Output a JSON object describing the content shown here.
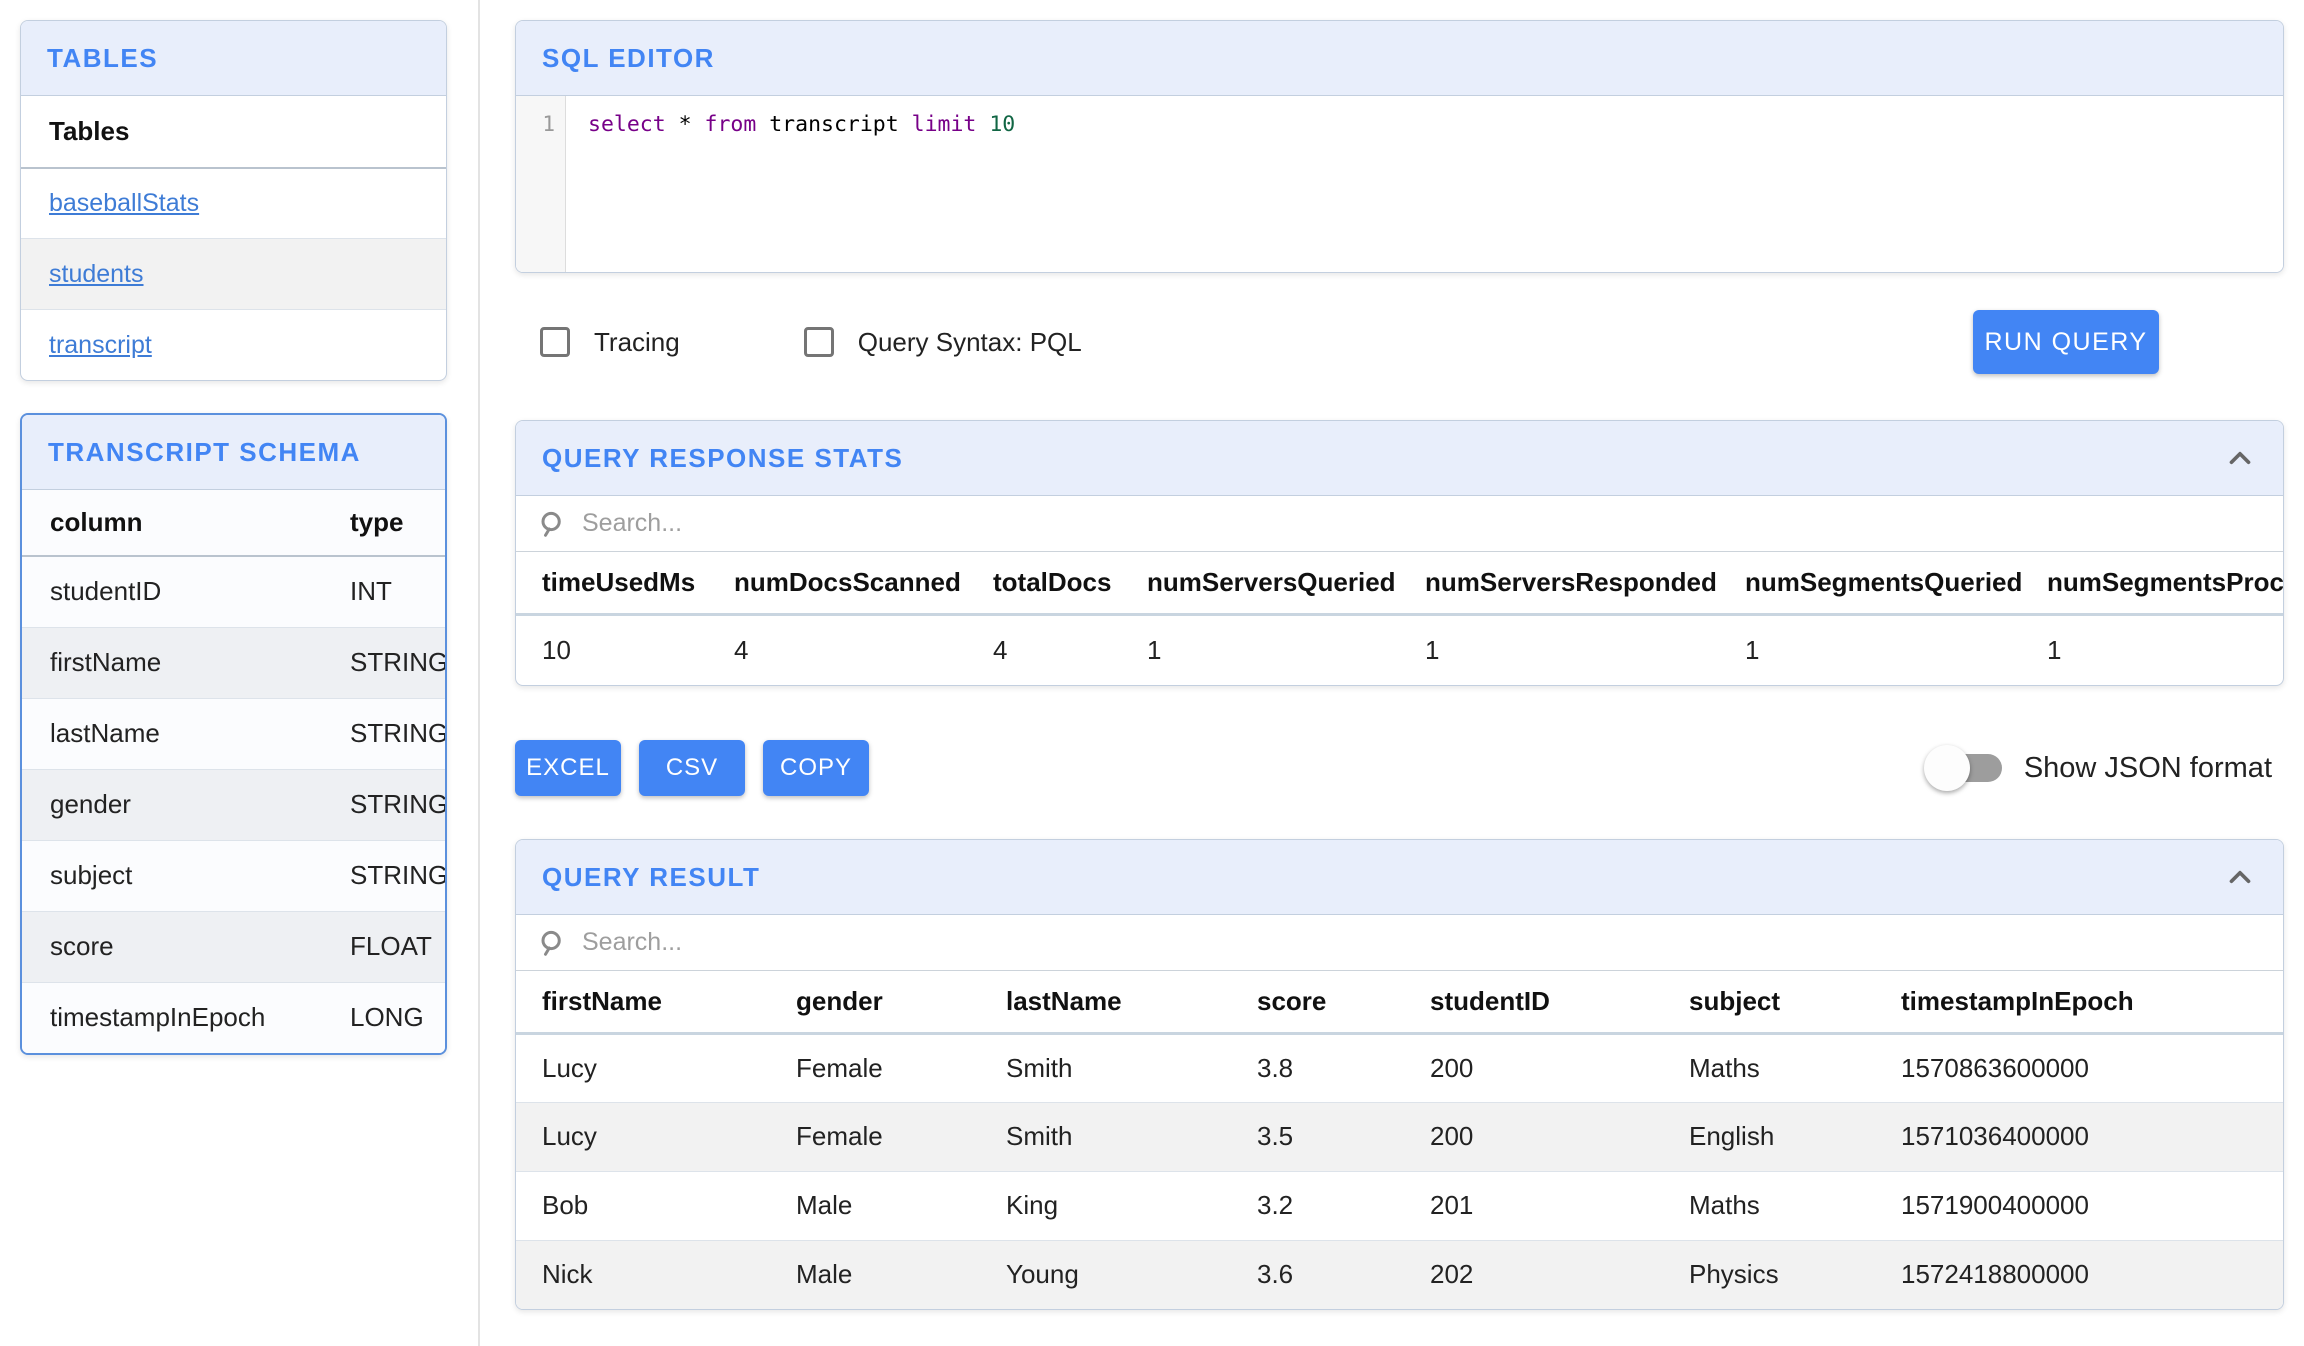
{
  "colors": {
    "accent": "#4285f4",
    "panel_header_bg": "#e8eefb",
    "link": "#3e7cd6",
    "sql_keyword": "#770088",
    "sql_number": "#116644",
    "row_alt": "#f2f2f2"
  },
  "sidebar": {
    "tables_panel": {
      "title": "TABLES",
      "header": "Tables",
      "items": [
        "baseballStats",
        "students",
        "transcript"
      ]
    },
    "schema_panel": {
      "title": "TRANSCRIPT SCHEMA",
      "columns": [
        "column",
        "type"
      ],
      "rows": [
        [
          "studentID",
          "INT"
        ],
        [
          "firstName",
          "STRING"
        ],
        [
          "lastName",
          "STRING"
        ],
        [
          "gender",
          "STRING"
        ],
        [
          "subject",
          "STRING"
        ],
        [
          "score",
          "FLOAT"
        ],
        [
          "timestampInEpoch",
          "LONG"
        ]
      ]
    }
  },
  "editor": {
    "title": "SQL EDITOR",
    "line_number": "1",
    "code_tokens": [
      {
        "text": "select",
        "type": "keyword"
      },
      {
        "text": " * ",
        "type": "plain"
      },
      {
        "text": "from",
        "type": "keyword"
      },
      {
        "text": " transcript ",
        "type": "plain"
      },
      {
        "text": "limit",
        "type": "keyword"
      },
      {
        "text": " 10",
        "type": "number"
      }
    ]
  },
  "controls": {
    "tracing_label": "Tracing",
    "pql_label": "Query Syntax: PQL",
    "run_label": "RUN QUERY"
  },
  "stats": {
    "title": "QUERY RESPONSE STATS",
    "search_placeholder": "Search...",
    "columns": [
      "timeUsedMs",
      "numDocsScanned",
      "totalDocs",
      "numServersQueried",
      "numServersResponded",
      "numSegmentsQueried",
      "numSegmentsProcess"
    ],
    "values": [
      "10",
      "4",
      "4",
      "1",
      "1",
      "1",
      "1"
    ]
  },
  "export": {
    "excel": "EXCEL",
    "csv": "CSV",
    "copy": "COPY",
    "json_toggle_label": "Show JSON format"
  },
  "result": {
    "title": "QUERY RESULT",
    "search_placeholder": "Search...",
    "columns": [
      "firstName",
      "gender",
      "lastName",
      "score",
      "studentID",
      "subject",
      "timestampInEpoch"
    ],
    "rows": [
      [
        "Lucy",
        "Female",
        "Smith",
        "3.8",
        "200",
        "Maths",
        "1570863600000"
      ],
      [
        "Lucy",
        "Female",
        "Smith",
        "3.5",
        "200",
        "English",
        "1571036400000"
      ],
      [
        "Bob",
        "Male",
        "King",
        "3.2",
        "201",
        "Maths",
        "1571900400000"
      ],
      [
        "Nick",
        "Male",
        "Young",
        "3.6",
        "202",
        "Physics",
        "1572418800000"
      ]
    ]
  }
}
